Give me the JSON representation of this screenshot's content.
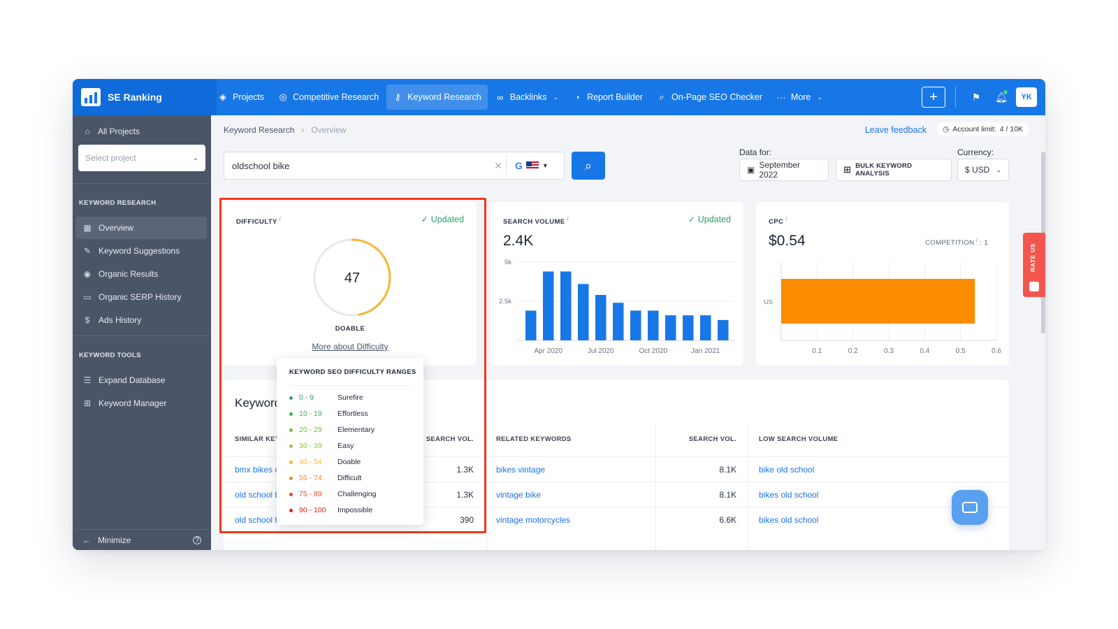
{
  "brand": {
    "name": "SE Ranking"
  },
  "nav": [
    {
      "label": "Projects",
      "icon": "layers-icon",
      "glyph": "◈"
    },
    {
      "label": "Competitive Research",
      "icon": "target-icon",
      "glyph": "◎"
    },
    {
      "label": "Keyword Research",
      "icon": "key-icon",
      "glyph": "⚷",
      "active": true
    },
    {
      "label": "Backlinks",
      "icon": "link-icon",
      "glyph": "∞",
      "caret": true
    },
    {
      "label": "Report Builder",
      "icon": "pie-icon",
      "glyph": "◔"
    },
    {
      "label": "On-Page SEO Checker",
      "icon": "magnifier-icon",
      "glyph": "⌕"
    },
    {
      "label": "More",
      "icon": "dots-icon",
      "glyph": "···",
      "caret": true
    }
  ],
  "topbar": {
    "avatar": "YK"
  },
  "sidebar": {
    "all_projects": "All Projects",
    "select_placeholder": "Select project",
    "section1": "KEYWORD RESEARCH",
    "items1": [
      {
        "label": "Overview",
        "icon": "grid-icon",
        "glyph": "▦",
        "active": true
      },
      {
        "label": "Keyword Suggestions",
        "icon": "pencil-icon",
        "glyph": "✎"
      },
      {
        "label": "Organic Results",
        "icon": "circle-target-icon",
        "glyph": "◉"
      },
      {
        "label": "Organic SERP History",
        "icon": "archive-icon",
        "glyph": "▭"
      },
      {
        "label": "Ads History",
        "icon": "dollar-icon",
        "glyph": "$"
      }
    ],
    "section2": "KEYWORD TOOLS",
    "items2": [
      {
        "label": "Expand Database",
        "icon": "database-icon",
        "glyph": "☰"
      },
      {
        "label": "Keyword Manager",
        "icon": "briefcase-icon",
        "glyph": "⊞"
      }
    ],
    "minimize": "Minimize"
  },
  "header": {
    "breadcrumb": [
      "Keyword Research",
      "Overview"
    ],
    "feedback": "Leave feedback",
    "account_limit_label": "Account limit:",
    "account_limit_value": "4 / 10K",
    "search_value": "oldschool bike",
    "data_for_label": "Data for:",
    "date": "September 2022",
    "bulk": "BULK KEYWORD ANALYSIS",
    "currency_label": "Currency:",
    "currency": "$ USD"
  },
  "difficulty": {
    "title": "DIFFICULTY",
    "info": "i",
    "status": "Updated",
    "value": 47,
    "level": "DOABLE",
    "link": "More about Difficulty",
    "arc_color": "#f5b731"
  },
  "search_volume": {
    "title": "SEARCH VOLUME",
    "info": "i",
    "status": "Updated",
    "value": "2.4K"
  },
  "cpc": {
    "title": "CPC",
    "info": "i",
    "value": "$0.54",
    "competition_label": "COMPETITION",
    "competition_value": "1"
  },
  "rate_us": "RATE US",
  "chart_data": [
    {
      "type": "bar",
      "title": "",
      "ylim": [
        0,
        5000
      ],
      "y_ticks": [
        {
          "v": 5000,
          "label": "5k"
        },
        {
          "v": 2500,
          "label": "2.5k"
        }
      ],
      "x_labels": [
        "Apr 2020",
        "Jul 2020",
        "Oct 2020",
        "Jan 2021"
      ],
      "x_label_indices": [
        1,
        4,
        7,
        10
      ],
      "values": [
        1900,
        4400,
        4400,
        3600,
        2900,
        2400,
        1900,
        1900,
        1600,
        1600,
        1600,
        1300
      ],
      "color": "#1877e6"
    },
    {
      "type": "bar",
      "orientation": "horizontal",
      "categories": [
        "US"
      ],
      "values": [
        0.54
      ],
      "xlim": [
        0,
        0.6
      ],
      "x_ticks": [
        "0.1",
        "0.2",
        "0.3",
        "0.4",
        "0.5",
        "0.6"
      ],
      "color": "#fb8c00"
    }
  ],
  "keywords": {
    "title": "Keywords",
    "headers": [
      "SIMILAR KEYWORDS",
      "SEARCH VOL.",
      "RELATED KEYWORDS",
      "SEARCH VOL.",
      "LOW SEARCH VOLUME"
    ],
    "rows": [
      {
        "similar": "bmx bikes old school",
        "sim_vol": "1.3K",
        "related": "bikes vintage",
        "rel_vol": "8.1K",
        "low": "bike old school"
      },
      {
        "similar": "old school bmx bikes",
        "sim_vol": "1.3K",
        "related": "vintage bike",
        "rel_vol": "8.1K",
        "low": "bikes old school"
      },
      {
        "similar": "old school bikes",
        "sim_vol": "390",
        "related": "vintage motorcycles",
        "rel_vol": "6.6K",
        "low": "bikes old school"
      }
    ]
  },
  "tooltip": {
    "title": "KEYWORD SEO DIFFICULTY RANGES",
    "ranges": [
      {
        "range": "0 - 9",
        "label": "Surefire",
        "color": "#2e9e6a"
      },
      {
        "range": "10 - 19",
        "label": "Effortless",
        "color": "#3fae5c"
      },
      {
        "range": "20 - 29",
        "label": "Elementary",
        "color": "#6cbf3a"
      },
      {
        "range": "30 - 39",
        "label": "Easy",
        "color": "#8fc73e"
      },
      {
        "range": "40 - 54",
        "label": "Doable",
        "color": "#f5b731"
      },
      {
        "range": "55 - 74",
        "label": "Difficult",
        "color": "#f08a24"
      },
      {
        "range": "75 - 89",
        "label": "Challenging",
        "color": "#ea4a1e"
      },
      {
        "range": "90 - 100",
        "label": "Impossible",
        "color": "#d8241c"
      }
    ]
  }
}
